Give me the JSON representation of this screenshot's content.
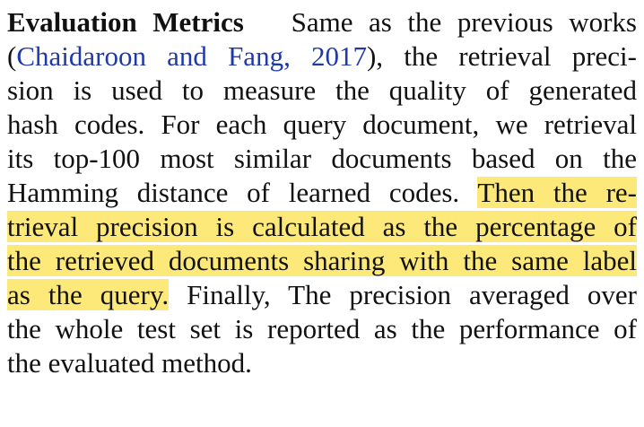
{
  "paragraph": {
    "heading": "Evaluation Metrics",
    "line1_text": "Same as the previous works",
    "open_paren": "(",
    "citation": "Chaidaroon and Fang, 2017",
    "line2_rest": "), the retrieval preci-",
    "line3": "sion is used to measure the quality of generated",
    "line4": "hash codes. For each query document, we retrieval",
    "line5": "its top-100 most similar documents based on the",
    "line6_plain": "Hamming distance of learned codes.",
    "line6_highlight": "Then the re-",
    "line7_highlight": "trieval precision is calculated as the percentage of",
    "line8_highlight": "the retrieved documents sharing with the same label",
    "line9_highlight": "as the query.",
    "line9_plain": "Finally, The precision averaged over",
    "line10": "the whole test set is reported as the performance of",
    "line11": "the evaluated method."
  },
  "colors": {
    "highlight": "#fde97a",
    "citation": "#1f3aa8",
    "text": "#111111"
  }
}
